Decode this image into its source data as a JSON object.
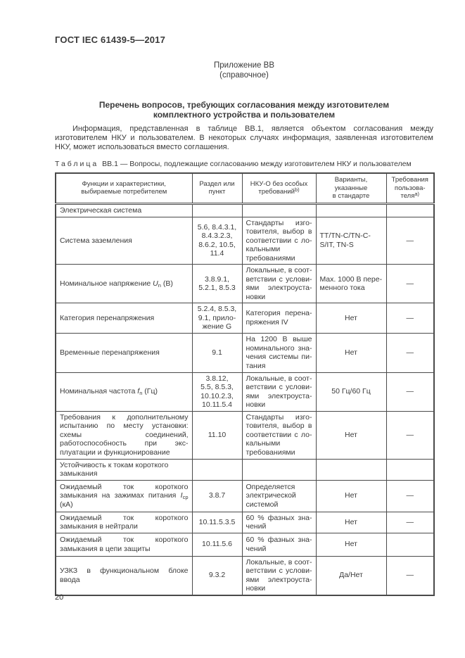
{
  "header": {
    "code": "ГОСТ IEC 61439-5—2017"
  },
  "annex": {
    "label": "Приложение ВВ",
    "type": "(справочное)"
  },
  "heading": {
    "line1": "Перечень вопросов, требующих согласования между изготовителем",
    "line2": "комплектного устройства и пользователем"
  },
  "intro": "Информация, представленная в таблице ВВ.1, является объектом согласования между изготовителем НКУ и пользователем. В некоторых случаях информация, заявленная изготовителем НКУ, может использоваться вместо соглашения.",
  "table": {
    "caption_label": "Таблица",
    "caption_text": "ВВ.1 — Вопросы, подлежащие согласованию между изготовителем НКУ и пользователем",
    "columns": [
      "Функции и характеристики,<br>выбираемые потребителем",
      "Раздел или<br>пункт",
      "НКУ-О без особых<br>требований<sup>b)</sup>",
      "Варианты,<br>указанные<br>в стандарте",
      "Требования<br>пользова-<br>теля<sup>a)</sup>"
    ],
    "rows": [
      {
        "section": true,
        "cells": [
          "Электрическая система",
          "",
          "",
          "",
          ""
        ]
      },
      {
        "cells": [
          "Система заземления",
          "5.6, 8.4.3.1,<br>8.4.3.2.3,<br>8.6.2, 10.5,<br>11.4",
          "Стандарты изго­товителя, выбор в соответствии с ло­кальными требова­ниями",
          "TT/TN-C/TN-C-S/IT, TN-S",
          "—"
        ],
        "align4": "left"
      },
      {
        "cells": [
          "Номинальное напряжение <i>U</i><sub>n</sub> (В)",
          "3.8.9.1,<br>5.2.1, 8.5.3",
          "Локальные, в соот­ветствии с услови­ями электроуста­новки",
          "Max. 1000 В пере­менного тока",
          "—"
        ],
        "align4": "left"
      },
      {
        "cells": [
          "Категория перенапряжения",
          "5.2.4, 8.5.3,<br>9.1, прило-<br>жение G",
          "Категория перена­пряжения IV",
          "Нет",
          "—"
        ]
      },
      {
        "cells": [
          "Временные перенапряжения",
          "9.1",
          "На 1200 В выше номинального зна­чения системы пи­тания",
          "Нет",
          "—"
        ]
      },
      {
        "cells": [
          "Номинальная частота <i>f</i><sub>n</sub> (Гц)",
          "3.8.12,<br>5.5, 8.5.3,<br>10.10.2.3,<br>10.11.5.4",
          "Локальные, в соот­ветствии с услови­ями электроуста­новки",
          "50 Гц/60 Гц",
          "—"
        ]
      },
      {
        "cells": [
          "Требования к дополнительному испы­танию по месту установки: схемы со­единений, работоспособность при экс­плуатации и функционирование",
          "11.10",
          "Стандарты изго­товителя, выбор в соответствии с ло­кальными требова­ниями",
          "Нет",
          "—"
        ]
      },
      {
        "section": true,
        "cells": [
          "Устойчивость к токам короткого замы­кания",
          "",
          "",
          "",
          ""
        ]
      },
      {
        "cells": [
          "Ожидаемый ток короткого замыкания на зажимах питания <i>I</i><sub>cp</sub> (кА)",
          "3.8.7",
          "Определяется электрической сис­темой",
          "Нет",
          "—"
        ]
      },
      {
        "cells": [
          "Ожидаемый ток короткого замыкания в нейтрали",
          "10.11.5.3.5",
          "60 % фазных зна­чений",
          "Нет",
          "—"
        ]
      },
      {
        "cells": [
          "Ожидаемый ток короткого замыкания в цепи защиты",
          "10.11.5.6",
          "60 % фазных зна­чений",
          "Нет",
          ""
        ]
      },
      {
        "cells": [
          "УЗКЗ в функциональном блоке ввода",
          "9.3.2",
          "Локальные, в соот­ветствии с услови­ями электроуста­новки",
          "Да/Нет",
          "—"
        ]
      }
    ]
  },
  "footer": {
    "page_number": "20"
  }
}
